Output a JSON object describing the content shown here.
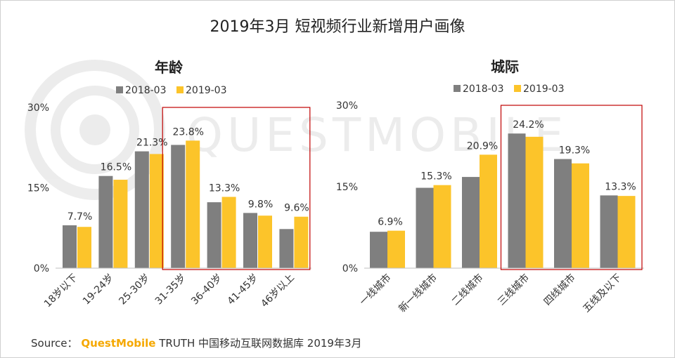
{
  "title": "2019年3月 短视频行业新增用户画像",
  "source": {
    "label": "Source：",
    "brand": "QuestMobile",
    "text": "TRUTH 中国移动互联网数据库 2019年3月"
  },
  "watermark": "QUESTMOBILE",
  "colors": {
    "series_2018": "#7f7f7f",
    "series_2019": "#fcc42a",
    "highlight_box": "#c00000"
  },
  "chart_data": [
    {
      "type": "bar",
      "title": "年龄",
      "categories": [
        "18岁以下",
        "19-24岁",
        "25-30岁",
        "31-35岁",
        "36-40岁",
        "41-45岁",
        "46岁以上"
      ],
      "series": [
        {
          "name": "2018-03",
          "values": [
            8.0,
            17.2,
            21.8,
            23.0,
            12.3,
            10.3,
            7.3
          ]
        },
        {
          "name": "2019-03",
          "values": [
            7.7,
            16.5,
            21.3,
            23.8,
            13.3,
            9.8,
            9.6
          ]
        }
      ],
      "data_labels": [
        "7.7%",
        "16.5%",
        "21.3%",
        "23.8%",
        "13.3%",
        "9.8%",
        "9.6%"
      ],
      "yticks": [
        "0%",
        "15%",
        "30%"
      ],
      "ylim": [
        0,
        30
      ],
      "legend": "top",
      "highlight": {
        "from": 3,
        "to": 6
      }
    },
    {
      "type": "bar",
      "title": "城际",
      "categories": [
        "一线城市",
        "新一线城市",
        "二线城市",
        "三线城市",
        "四线城市",
        "五线及以下"
      ],
      "series": [
        {
          "name": "2018-03",
          "values": [
            6.7,
            14.8,
            16.8,
            24.8,
            20.1,
            13.4
          ]
        },
        {
          "name": "2019-03",
          "values": [
            6.9,
            15.3,
            20.9,
            24.2,
            19.3,
            13.3
          ]
        }
      ],
      "data_labels": [
        "6.9%",
        "15.3%",
        "20.9%",
        "24.2%",
        "19.3%",
        "13.3%"
      ],
      "yticks": [
        "0%",
        "15%",
        "30%"
      ],
      "ylim": [
        0,
        30
      ],
      "legend": "top",
      "highlight": {
        "from": 3,
        "to": 5
      }
    }
  ]
}
